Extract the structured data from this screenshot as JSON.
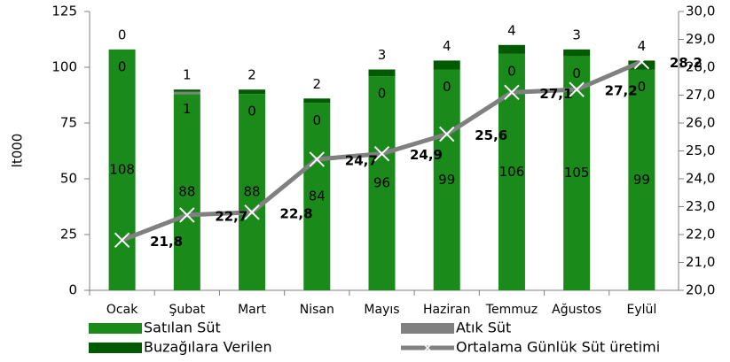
{
  "chart_data": {
    "type": "bar",
    "categories": [
      "Ocak",
      "Şubat",
      "Mart",
      "Nisan",
      "Mayıs",
      "Haziran",
      "Temmuz",
      "Ağustos",
      "Eylül"
    ],
    "stacked": true,
    "series": [
      {
        "name": "Satılan Süt",
        "color": "#1a8a1a",
        "values": [
          108,
          88,
          88,
          84,
          96,
          99,
          106,
          105,
          99
        ]
      },
      {
        "name": "Atık Süt",
        "color": "#808080",
        "values": [
          0,
          1,
          0,
          0,
          0,
          0,
          0,
          0,
          0
        ]
      },
      {
        "name": "Buzağılara Verilen",
        "color": "#005a00",
        "values": [
          0,
          1,
          2,
          2,
          3,
          4,
          4,
          3,
          4
        ]
      },
      {
        "name": "Ortalama Günlük Süt üretimi",
        "type": "line",
        "axis": "y2",
        "color": "#808080",
        "values": [
          21.8,
          22.7,
          22.8,
          24.7,
          24.9,
          25.6,
          27.1,
          27.2,
          28.2
        ],
        "value_labels": [
          "21,8",
          "22,7",
          "22,8",
          "24,7",
          "24,9",
          "25,6",
          "27,1",
          "27,2",
          "28,2"
        ]
      }
    ],
    "ylabel": "lt000",
    "ylim": [
      0,
      125
    ],
    "yticks": [
      0,
      25,
      50,
      75,
      100,
      125
    ],
    "y2lim": [
      20,
      30
    ],
    "y2ticks": [
      {
        "value": 20,
        "label": "20,0"
      },
      {
        "value": 21,
        "label": "21,0"
      },
      {
        "value": 22,
        "label": "22,0"
      },
      {
        "value": 23,
        "label": "23,0"
      },
      {
        "value": 24,
        "label": "24,0"
      },
      {
        "value": 25,
        "label": "25,0"
      },
      {
        "value": 26,
        "label": "26,0"
      },
      {
        "value": 27,
        "label": "27,0"
      },
      {
        "value": 28,
        "label": "28,0"
      },
      {
        "value": 29,
        "label": "29,0"
      },
      {
        "value": 30,
        "label": "30,0"
      }
    ],
    "legend": "bottom"
  }
}
